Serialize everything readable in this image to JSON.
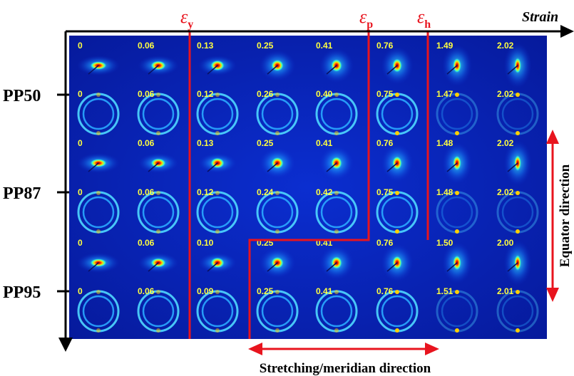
{
  "figure": {
    "axis_label_top": "Strain",
    "axis_label_bottom": "Stretching/meridian direction",
    "axis_label_right": "Equator direction",
    "epsilon_labels": [
      {
        "symbol": "ε",
        "sub": "y"
      },
      {
        "symbol": "ε",
        "sub": "p"
      },
      {
        "symbol": "ε",
        "sub": "h"
      }
    ],
    "samples": [
      "PP50",
      "PP87",
      "PP95"
    ],
    "rows": [
      {
        "sample": "PP50",
        "kind": "SAXS",
        "strains": [
          "0",
          "0.06",
          "0.13",
          "0.25",
          "0.41",
          "0.76",
          "1.49",
          "2.02"
        ]
      },
      {
        "sample": "PP50",
        "kind": "WAXS",
        "strains": [
          "0",
          "0.06",
          "0.12",
          "0.26",
          "0.40",
          "0.75",
          "1.47",
          "2.02"
        ]
      },
      {
        "sample": "PP87",
        "kind": "SAXS",
        "strains": [
          "0",
          "0.06",
          "0.13",
          "0.25",
          "0.41",
          "0.76",
          "1.48",
          "2.02"
        ]
      },
      {
        "sample": "PP87",
        "kind": "WAXS",
        "strains": [
          "0",
          "0.06",
          "0.12",
          "0.24",
          "0.42",
          "0.75",
          "1.48",
          "2.02"
        ]
      },
      {
        "sample": "PP95",
        "kind": "SAXS",
        "strains": [
          "0",
          "0.06",
          "0.10",
          "0.25",
          "0.41",
          "0.76",
          "1.50",
          "2.00"
        ]
      },
      {
        "sample": "PP95",
        "kind": "WAXS",
        "strains": [
          "0",
          "0.06",
          "0.09",
          "0.25",
          "0.41",
          "0.76",
          "1.51",
          "2.01"
        ]
      }
    ],
    "colors": {
      "background": "#0a1fb0",
      "label_yellow": "#ffff40",
      "boundary_red": "#e8141e",
      "hot_red": "#c00000",
      "text_black": "#000000"
    }
  }
}
